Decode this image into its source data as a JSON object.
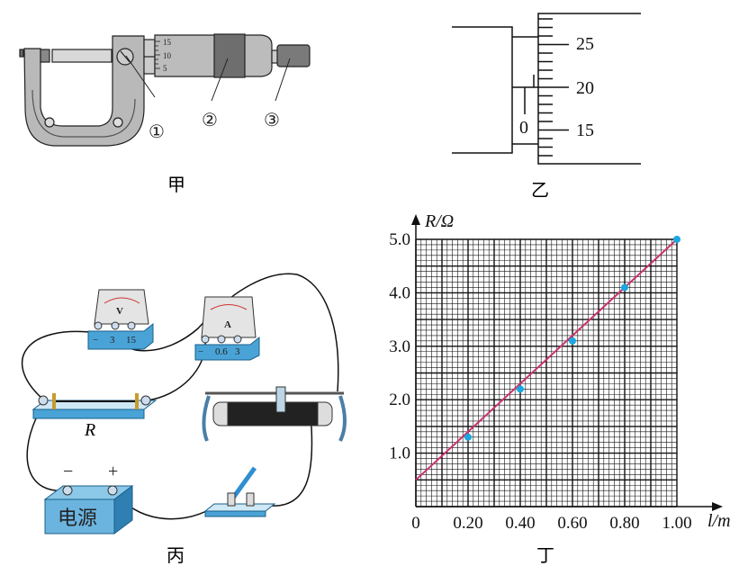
{
  "captions": {
    "jia": "甲",
    "yi": "乙",
    "bing": "丙",
    "ding": "丁"
  },
  "micrometer": {
    "scale_labels": [
      "15",
      "10",
      "5"
    ],
    "callouts": [
      "①",
      "②",
      "③"
    ]
  },
  "reading": {
    "thimble_labels": [
      "25",
      "20",
      "15"
    ],
    "sleeve_zero": "0"
  },
  "circuit": {
    "voltmeter": {
      "symbol": "V",
      "terminals": [
        "−",
        "3",
        "15"
      ]
    },
    "ammeter": {
      "symbol": "A",
      "terminals": [
        "−",
        "0.6",
        "3"
      ]
    },
    "resistor_label": "R",
    "battery": {
      "label": "电源",
      "minus": "−",
      "plus": "+"
    }
  },
  "colors": {
    "fit_line": "#c8336e",
    "points": "#1aa7e0",
    "device_blue": "#4aa3d6"
  },
  "chart_data": {
    "type": "scatter",
    "xlabel": "l/m",
    "ylabel": "R/Ω",
    "xlim": [
      0,
      1.0
    ],
    "ylim": [
      0,
      5.0
    ],
    "x_ticks": [
      "0",
      "0.20",
      "0.40",
      "0.60",
      "0.80",
      "1.00"
    ],
    "y_ticks": [
      "1.0",
      "2.0",
      "3.0",
      "4.0",
      "5.0"
    ],
    "grid": true,
    "points": [
      {
        "x": 0.2,
        "y": 1.3
      },
      {
        "x": 0.4,
        "y": 2.2
      },
      {
        "x": 0.6,
        "y": 3.1
      },
      {
        "x": 0.8,
        "y": 4.1
      },
      {
        "x": 1.0,
        "y": 5.0
      }
    ],
    "fit_line": {
      "x": [
        0,
        1.0
      ],
      "y": [
        0.5,
        5.0
      ]
    }
  }
}
